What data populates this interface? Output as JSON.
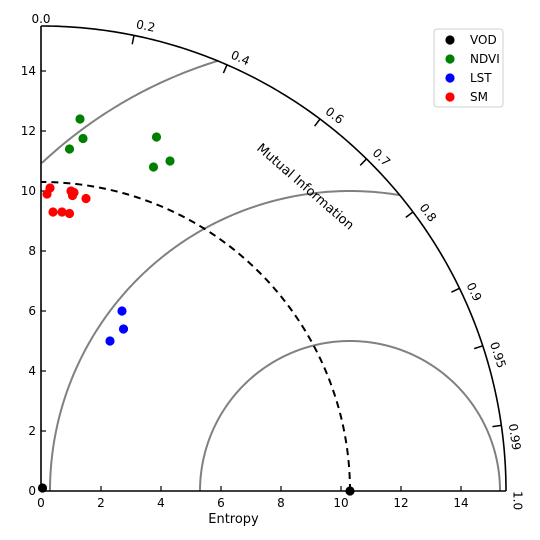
{
  "chart_data": {
    "type": "scatter",
    "subtype": "taylor-diagram",
    "xlabel": "Entropy",
    "arc_label": "Mutual Information",
    "xlim": [
      0,
      15.5
    ],
    "ylim": [
      0,
      15.5
    ],
    "x_ticks": [
      "0",
      "2",
      "4",
      "6",
      "8",
      "10",
      "12",
      "14"
    ],
    "y_ticks": [
      "0",
      "2",
      "4",
      "6",
      "8",
      "10",
      "12",
      "14"
    ],
    "corner_label": "0.0",
    "correlation_ticks": [
      "0.2",
      "0.4",
      "0.6",
      "0.7",
      "0.8",
      "0.9",
      "0.95",
      "0.99",
      "1.0"
    ],
    "reference_entropy": 10.3,
    "grid": false,
    "legend_position": "top-right",
    "series": [
      {
        "name": "VOD",
        "color": "#000000",
        "points": [
          [
            10.3,
            0.0
          ],
          [
            0.05,
            0.1
          ]
        ]
      },
      {
        "name": "NDVI",
        "color": "#008000",
        "points": [
          [
            1.3,
            12.4
          ],
          [
            1.4,
            11.75
          ],
          [
            0.95,
            11.4
          ],
          [
            3.85,
            11.8
          ],
          [
            4.3,
            11.0
          ],
          [
            3.75,
            10.8
          ]
        ]
      },
      {
        "name": "LST",
        "color": "#0000ff",
        "points": [
          [
            2.7,
            6.0
          ],
          [
            2.75,
            5.4
          ],
          [
            2.3,
            5.0
          ]
        ]
      },
      {
        "name": "SM",
        "color": "#ff0000",
        "points": [
          [
            0.3,
            10.1
          ],
          [
            0.2,
            9.9
          ],
          [
            1.0,
            10.0
          ],
          [
            1.1,
            9.95
          ],
          [
            1.05,
            9.85
          ],
          [
            1.5,
            9.75
          ],
          [
            0.4,
            9.3
          ],
          [
            0.7,
            9.3
          ],
          [
            0.95,
            9.25
          ]
        ]
      }
    ]
  }
}
